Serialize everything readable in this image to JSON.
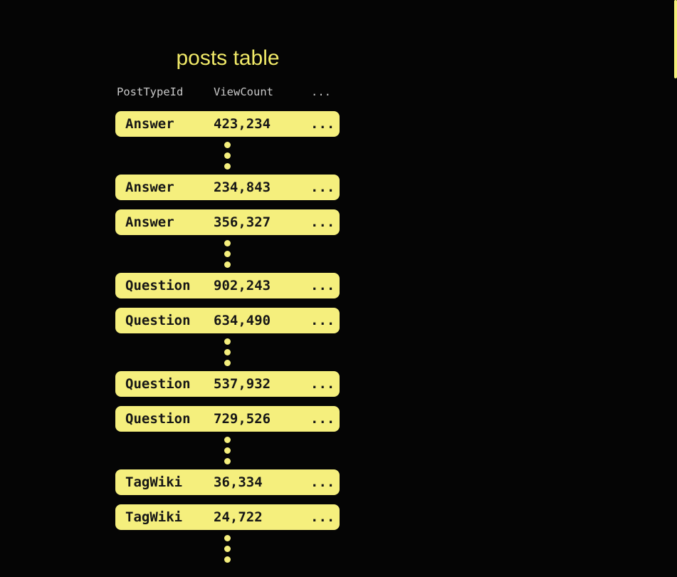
{
  "title": "posts table",
  "columns": [
    "PostTypeId",
    "ViewCount",
    "..."
  ],
  "row_groups": [
    [
      {
        "post_type": "Answer",
        "view_count": "423,234",
        "more": "..."
      }
    ],
    [
      {
        "post_type": "Answer",
        "view_count": "234,843",
        "more": "..."
      },
      {
        "post_type": "Answer",
        "view_count": "356,327",
        "more": "..."
      }
    ],
    [
      {
        "post_type": "Question",
        "view_count": "902,243",
        "more": "..."
      },
      {
        "post_type": "Question",
        "view_count": "634,490",
        "more": "..."
      }
    ],
    [
      {
        "post_type": "Question",
        "view_count": "537,932",
        "more": "..."
      },
      {
        "post_type": "Question",
        "view_count": "729,526",
        "more": "..."
      }
    ],
    [
      {
        "post_type": "TagWiki",
        "view_count": "36,334",
        "more": "..."
      },
      {
        "post_type": "TagWiki",
        "view_count": "24,722",
        "more": "..."
      }
    ]
  ],
  "separator": {
    "style": "vertical-ellipsis",
    "dot_count": 3
  },
  "colors": {
    "background": "#050505",
    "row_background": "#F5EF7D",
    "title_text": "#F0E968",
    "header_text": "#C9C9C9",
    "row_text": "#161616",
    "dots": "#F5EF7D"
  }
}
